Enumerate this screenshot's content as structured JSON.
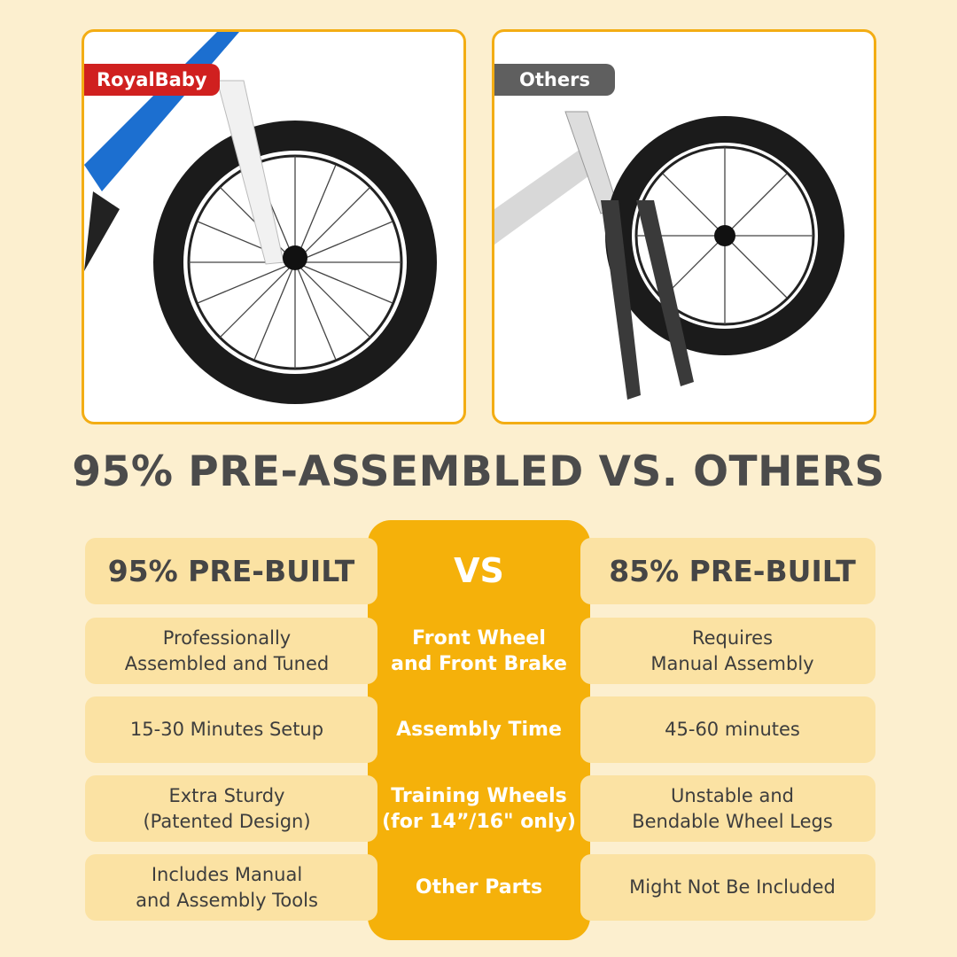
{
  "photos": {
    "left_label": "RoyalBaby",
    "right_label": "Others"
  },
  "title": "95% PRE-ASSEMBLED VS. OTHERS",
  "colors": {
    "background": "#fcefcf",
    "accent": "#f5b10a",
    "cell": "#fbe2a3",
    "brand_red": "#d0201f",
    "others_gray": "#5f5f5f"
  },
  "table": {
    "header": {
      "left": "95% PRE-BUILT",
      "center": "VS",
      "right": "85% PRE-BUILT"
    },
    "rows": [
      {
        "left": "Professionally\nAssembled and Tuned",
        "center": "Front Wheel\nand Front Brake",
        "right": "Requires\nManual Assembly"
      },
      {
        "left": "15-30 Minutes Setup",
        "center": "Assembly Time",
        "right": "45-60 minutes"
      },
      {
        "left": "Extra Sturdy\n(Patented Design)",
        "center": "Training Wheels\n(for 14”/16\" only)",
        "right": "Unstable and\nBendable Wheel Legs"
      },
      {
        "left": "Includes Manual\nand Assembly Tools",
        "center": "Other Parts",
        "right": "Might Not Be Included"
      }
    ]
  }
}
